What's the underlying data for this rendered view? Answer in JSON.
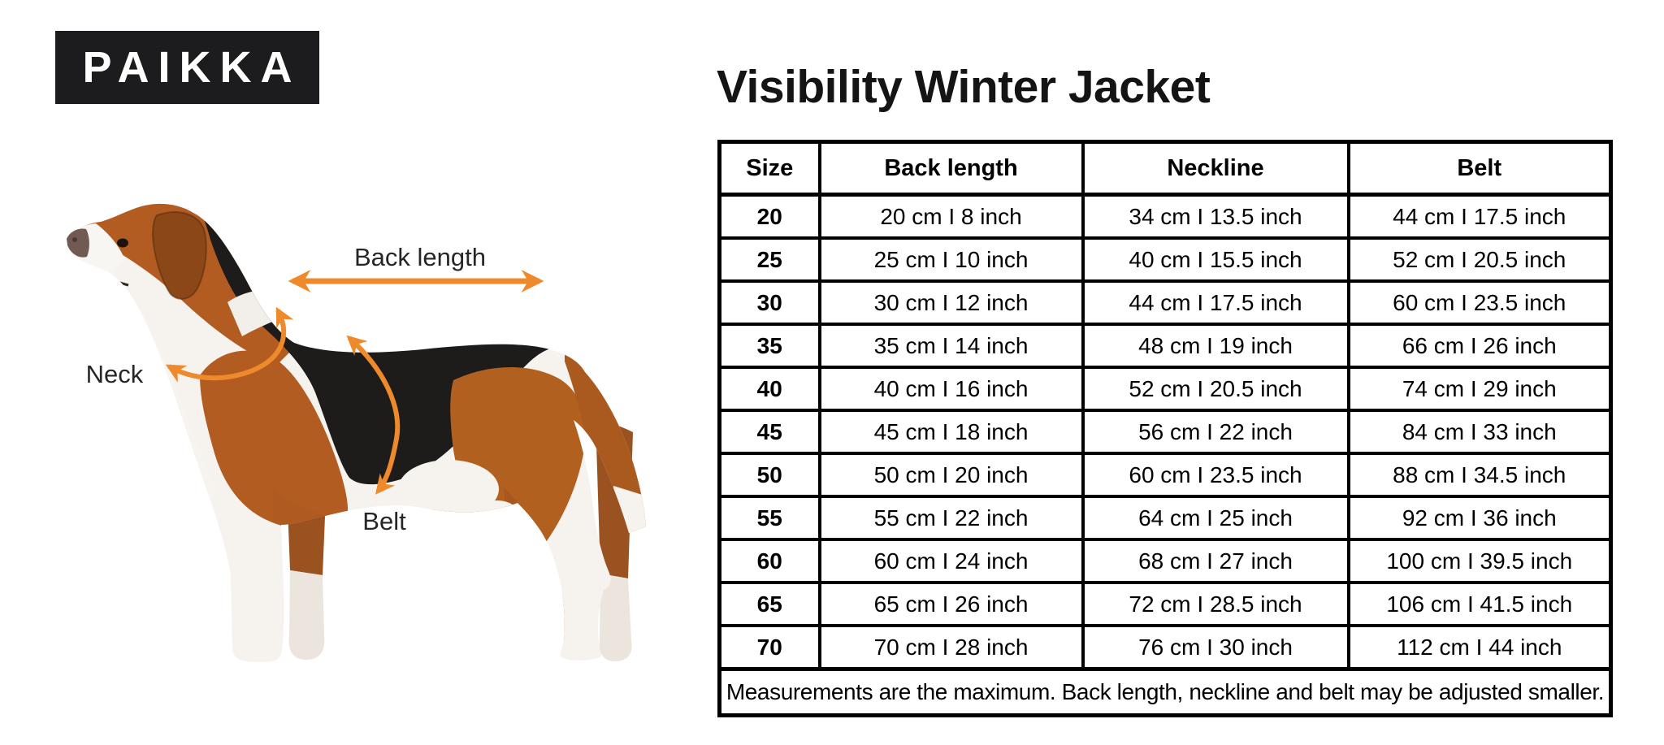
{
  "brand": {
    "logo_text": "PAIKKA"
  },
  "page_title": "Visibility Winter Jacket",
  "diagram": {
    "labels": {
      "back_length": "Back length",
      "neck": "Neck",
      "belt": "Belt"
    },
    "arrow_color": "#EE8A2B",
    "subject": "tricolor-hound-dog-side-view"
  },
  "size_chart": {
    "headers": [
      "Size",
      "Back length",
      "Neckline",
      "Belt"
    ],
    "rows": [
      {
        "size": "20",
        "back_length": "20 cm I 8 inch",
        "neckline": "34 cm I 13.5 inch",
        "belt": "44 cm I 17.5 inch"
      },
      {
        "size": "25",
        "back_length": "25 cm I 10 inch",
        "neckline": "40 cm I 15.5 inch",
        "belt": "52 cm I 20.5 inch"
      },
      {
        "size": "30",
        "back_length": "30 cm I 12 inch",
        "neckline": "44 cm I 17.5 inch",
        "belt": "60 cm I 23.5 inch"
      },
      {
        "size": "35",
        "back_length": "35 cm I 14 inch",
        "neckline": "48 cm I 19 inch",
        "belt": "66 cm I 26 inch"
      },
      {
        "size": "40",
        "back_length": "40 cm I 16 inch",
        "neckline": "52 cm I 20.5 inch",
        "belt": "74 cm I 29 inch"
      },
      {
        "size": "45",
        "back_length": "45 cm I 18 inch",
        "neckline": "56 cm I 22 inch",
        "belt": "84 cm I 33 inch"
      },
      {
        "size": "50",
        "back_length": "50 cm I 20 inch",
        "neckline": "60 cm I 23.5 inch",
        "belt": "88 cm I 34.5 inch"
      },
      {
        "size": "55",
        "back_length": "55 cm I 22 inch",
        "neckline": "64 cm I 25 inch",
        "belt": "92 cm I 36 inch"
      },
      {
        "size": "60",
        "back_length": "60 cm I 24 inch",
        "neckline": "68 cm I 27 inch",
        "belt": "100 cm I 39.5 inch"
      },
      {
        "size": "65",
        "back_length": "65 cm I 26 inch",
        "neckline": "72 cm I 28.5 inch",
        "belt": "106 cm I 41.5 inch"
      },
      {
        "size": "70",
        "back_length": "70 cm I 28 inch",
        "neckline": "76 cm I 30 inch",
        "belt": "112 cm I 44 inch"
      }
    ],
    "footnote": "Measurements are the maximum. Back length, neckline and belt may be adjusted smaller."
  }
}
